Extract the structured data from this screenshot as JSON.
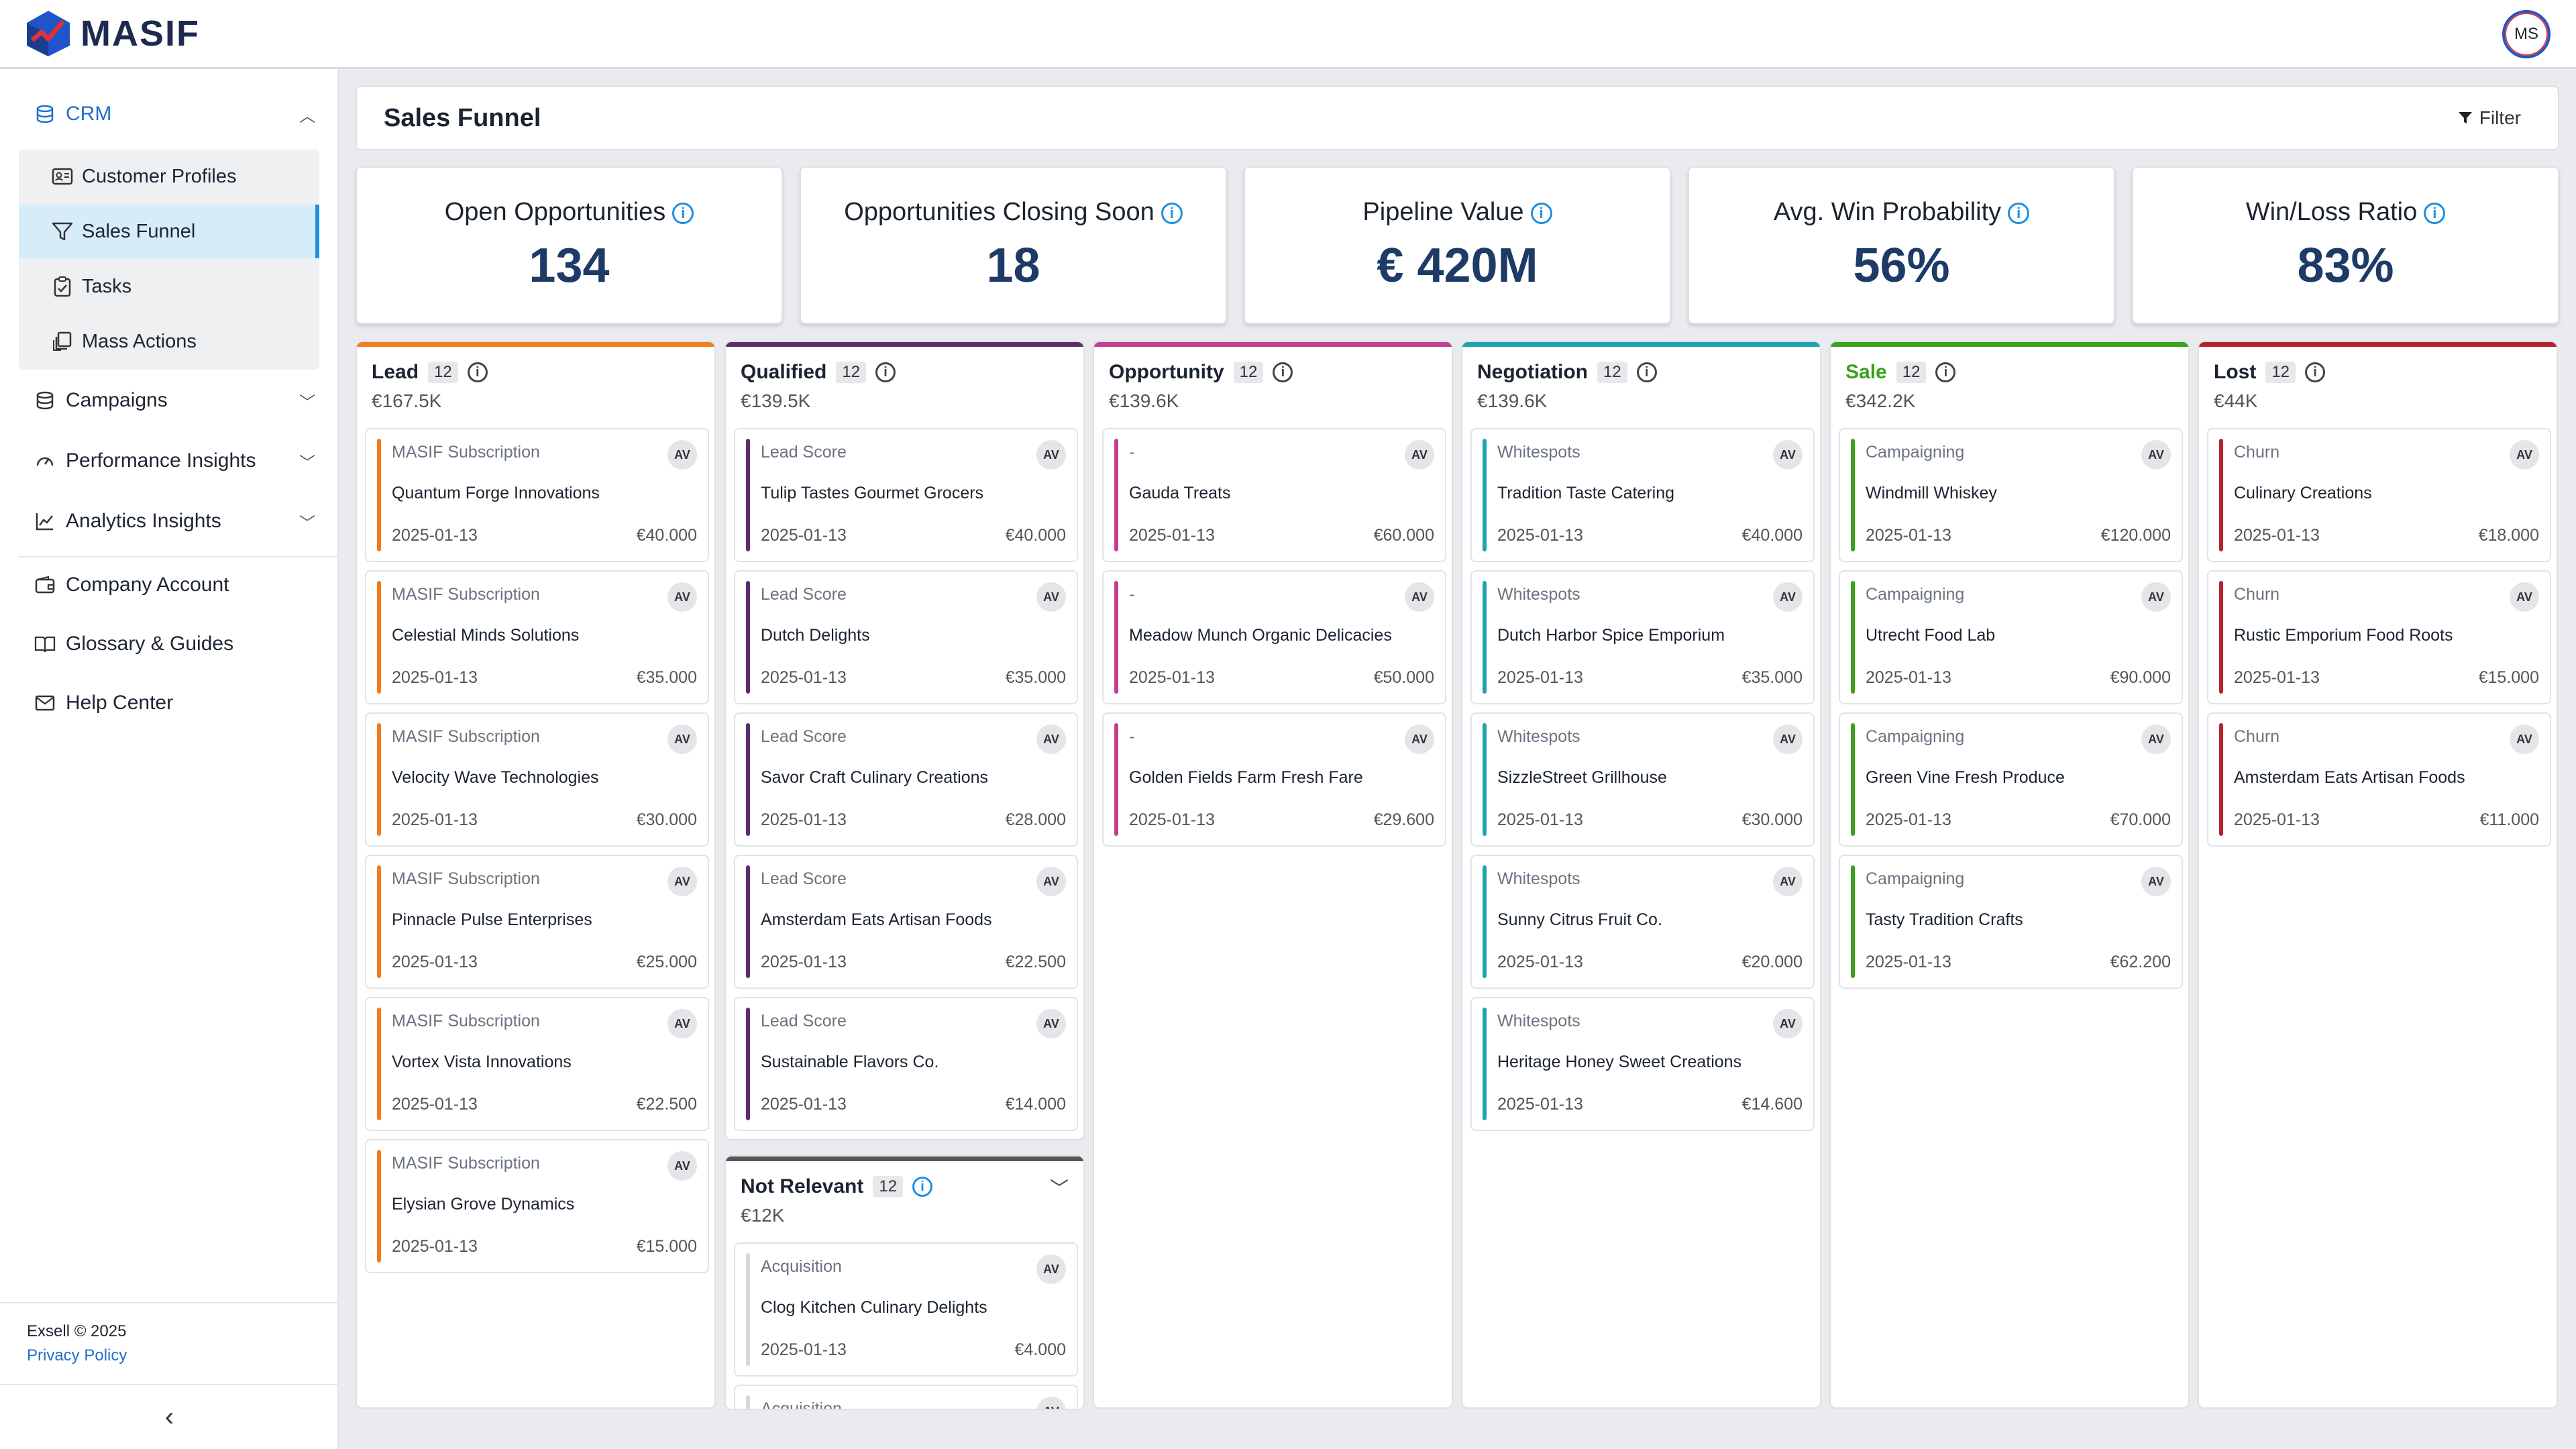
{
  "app": {
    "name": "MASIF",
    "user_initials": "MS"
  },
  "sidebar": {
    "crm_label": "CRM",
    "crm_items": [
      {
        "label": "Customer Profiles",
        "icon": "id-card-icon"
      },
      {
        "label": "Sales Funnel",
        "icon": "funnel-icon"
      },
      {
        "label": "Tasks",
        "icon": "clipboard-icon"
      },
      {
        "label": "Mass Actions",
        "icon": "copy-icon"
      }
    ],
    "sections": [
      {
        "label": "Campaigns",
        "icon": "database-icon"
      },
      {
        "label": "Performance Insights",
        "icon": "gauge-icon"
      },
      {
        "label": "Analytics Insights",
        "icon": "chart-line-icon"
      }
    ],
    "links": [
      {
        "label": "Company Account",
        "icon": "wallet-icon"
      },
      {
        "label": "Glossary & Guides",
        "icon": "book-icon"
      },
      {
        "label": "Help Center",
        "icon": "mail-icon"
      }
    ],
    "copyright": "Exsell © 2025",
    "privacy": "Privacy Policy"
  },
  "header": {
    "title": "Sales Funnel",
    "filter_label": "Filter"
  },
  "kpis": [
    {
      "label": "Open Opportunities",
      "value": "134"
    },
    {
      "label": "Opportunities Closing Soon",
      "value": "18"
    },
    {
      "label": "Pipeline Value",
      "value": "€ 420M"
    },
    {
      "label": "Avg. Win Probability",
      "value": "56%"
    },
    {
      "label": "Win/Loss Ratio",
      "value": "83%"
    }
  ],
  "columns": [
    {
      "title": "Lead",
      "count": "12",
      "total": "€167.5K",
      "color": "#f07d1e",
      "title_color": "#1b2430",
      "cards": [
        {
          "cat": "MASIF Subscription",
          "name": "Quantum Forge Innovations",
          "date": "2025-01-13",
          "amount": "€40.000"
        },
        {
          "cat": "MASIF Subscription",
          "name": "Celestial Minds Solutions",
          "date": "2025-01-13",
          "amount": "€35.000"
        },
        {
          "cat": "MASIF Subscription",
          "name": "Velocity Wave Technologies",
          "date": "2025-01-13",
          "amount": "€30.000"
        },
        {
          "cat": "MASIF Subscription",
          "name": "Pinnacle Pulse Enterprises",
          "date": "2025-01-13",
          "amount": "€25.000"
        },
        {
          "cat": "MASIF Subscription",
          "name": "Vortex Vista Innovations",
          "date": "2025-01-13",
          "amount": "€22.500"
        },
        {
          "cat": "MASIF Subscription",
          "name": "Elysian Grove Dynamics",
          "date": "2025-01-13",
          "amount": "€15.000"
        }
      ]
    },
    {
      "title": "Qualified",
      "count": "12",
      "total": "€139.5K",
      "color": "#5b2d6e",
      "title_color": "#1b2430",
      "cards": [
        {
          "cat": "Lead Score",
          "name": "Tulip Tastes Gourmet Grocers",
          "date": "2025-01-13",
          "amount": "€40.000"
        },
        {
          "cat": "Lead Score",
          "name": "Dutch Delights",
          "date": "2025-01-13",
          "amount": "€35.000"
        },
        {
          "cat": "Lead Score",
          "name": "Savor Craft Culinary Creations",
          "date": "2025-01-13",
          "amount": "€28.000"
        },
        {
          "cat": "Lead Score",
          "name": "Amsterdam Eats Artisan Foods",
          "date": "2025-01-13",
          "amount": "€22.500"
        },
        {
          "cat": "Lead Score",
          "name": "Sustainable Flavors Co.",
          "date": "2025-01-13",
          "amount": "€14.000"
        }
      ]
    },
    {
      "title": "Opportunity",
      "count": "12",
      "total": "€139.6K",
      "color": "#c23f8e",
      "title_color": "#1b2430",
      "cards": [
        {
          "cat": "-",
          "name": "Gauda Treats",
          "date": "2025-01-13",
          "amount": "€60.000"
        },
        {
          "cat": "-",
          "name": "Meadow Munch Organic Delicacies",
          "date": "2025-01-13",
          "amount": "€50.000"
        },
        {
          "cat": "-",
          "name": "Golden Fields Farm Fresh Fare",
          "date": "2025-01-13",
          "amount": "€29.600"
        }
      ]
    },
    {
      "title": "Negotiation",
      "count": "12",
      "total": "€139.6K",
      "color": "#1fa3ad",
      "title_color": "#1b2430",
      "cards": [
        {
          "cat": "Whitespots",
          "name": "Tradition Taste Catering",
          "date": "2025-01-13",
          "amount": "€40.000"
        },
        {
          "cat": "Whitespots",
          "name": "Dutch Harbor Spice Emporium",
          "date": "2025-01-13",
          "amount": "€35.000"
        },
        {
          "cat": "Whitespots",
          "name": "SizzleStreet Grillhouse",
          "date": "2025-01-13",
          "amount": "€30.000"
        },
        {
          "cat": "Whitespots",
          "name": "Sunny Citrus Fruit Co.",
          "date": "2025-01-13",
          "amount": "€20.000"
        },
        {
          "cat": "Whitespots",
          "name": "Heritage Honey Sweet Creations",
          "date": "2025-01-13",
          "amount": "€14.600"
        }
      ]
    },
    {
      "title": "Sale",
      "count": "12",
      "total": "€342.2K",
      "color": "#3aa11d",
      "title_color": "#3aa11d",
      "cards": [
        {
          "cat": "Campaigning",
          "name": "Windmill Whiskey",
          "date": "2025-01-13",
          "amount": "€120.000"
        },
        {
          "cat": "Campaigning",
          "name": "Utrecht Food Lab",
          "date": "2025-01-13",
          "amount": "€90.000"
        },
        {
          "cat": "Campaigning",
          "name": "Green Vine Fresh Produce",
          "date": "2025-01-13",
          "amount": "€70.000"
        },
        {
          "cat": "Campaigning",
          "name": "Tasty Tradition Crafts",
          "date": "2025-01-13",
          "amount": "€62.200"
        }
      ]
    },
    {
      "title": "Lost",
      "count": "12",
      "total": "€44K",
      "color": "#b3222d",
      "title_color": "#1b2430",
      "cards": [
        {
          "cat": "Churn",
          "name": "Culinary Creations",
          "date": "2025-01-13",
          "amount": "€18.000"
        },
        {
          "cat": "Churn",
          "name": "Rustic Emporium Food Roots",
          "date": "2025-01-13",
          "amount": "€15.000"
        },
        {
          "cat": "Churn",
          "name": "Amsterdam Eats Artisan Foods",
          "date": "2025-01-13",
          "amount": "€11.000"
        }
      ]
    }
  ],
  "not_relevant": {
    "title": "Not Relevant",
    "count": "12",
    "total": "€12K",
    "cards": [
      {
        "cat": "Acquisition",
        "name": "Clog Kitchen Culinary Delights",
        "date": "2025-01-13",
        "amount": "€4.000"
      },
      {
        "cat": "Acquisition",
        "name": "",
        "date": "",
        "amount": ""
      }
    ]
  },
  "card_avatar": "AV"
}
